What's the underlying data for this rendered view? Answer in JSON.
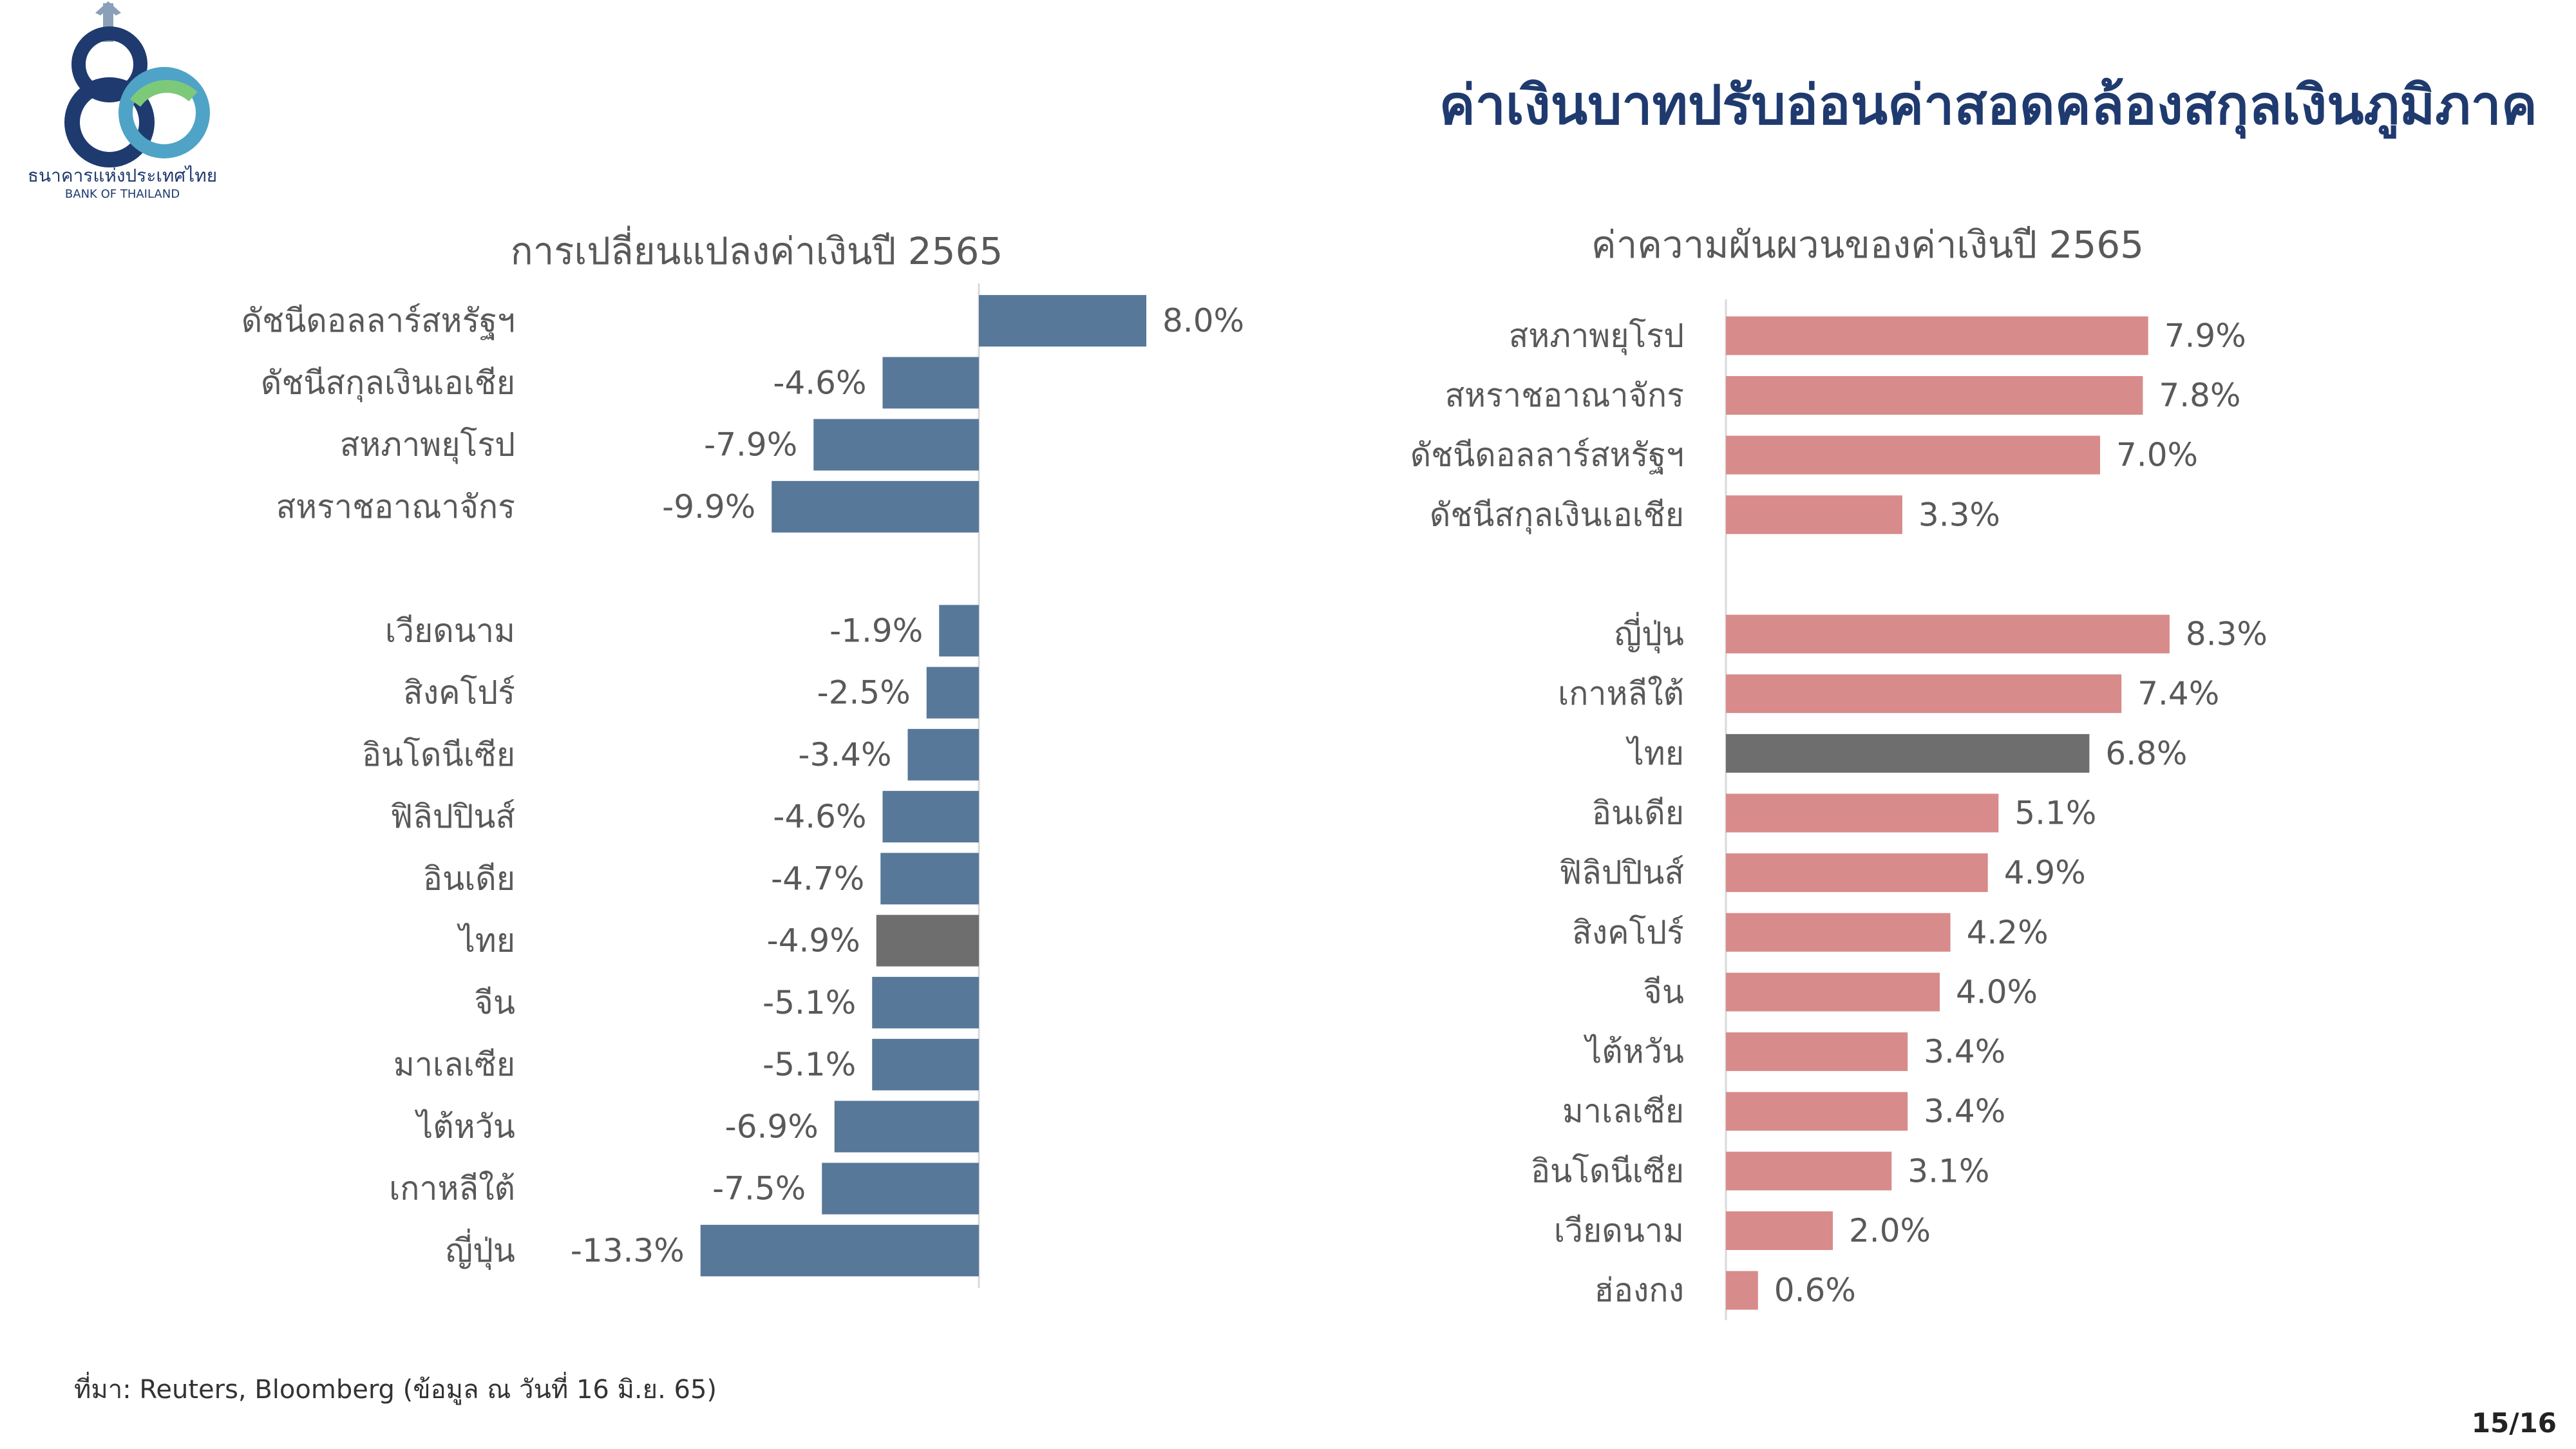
{
  "header": {
    "title": "ค่าเงินบาทปรับอ่อนค่าสอดคล้องสกุลเงินภูมิภาค",
    "logo": {
      "number": "80",
      "org_th": "ธนาคารแห่งประเทศไทย",
      "org_en": "BANK OF THAILAND"
    }
  },
  "colors": {
    "left_bar": "#587899",
    "right_bar": "#d88b8b",
    "highlight": "#6e6e6e",
    "title": "#1f3a6e"
  },
  "chart_data": [
    {
      "type": "bar",
      "orientation": "horizontal",
      "title": "การเปลี่ยนแปลงค่าเงินปี 2565",
      "categories": [
        "ดัชนีดอลลาร์สหรัฐฯ",
        "ดัชนีสกุลเงินเอเชีย",
        "สหภาพยุโรป",
        "สหราชอาณาจักร",
        "",
        "เวียดนาม",
        "สิงคโปร์",
        "อินโดนีเซีย",
        "ฟิลิปปินส์",
        "อินเดีย",
        "ไทย",
        "จีน",
        "มาเลเซีย",
        "ไต้หวัน",
        "เกาหลีใต้",
        "ญี่ปุ่น"
      ],
      "values": [
        8.0,
        -4.6,
        -7.9,
        -9.9,
        null,
        -1.9,
        -2.5,
        -3.4,
        -4.6,
        -4.7,
        -4.9,
        -5.1,
        -5.1,
        -6.9,
        -7.5,
        -13.3
      ],
      "value_labels": [
        "8.0%",
        "-4.6%",
        "-7.9%",
        "-9.9%",
        "",
        "-1.9%",
        "-2.5%",
        "-3.4%",
        "-4.6%",
        "-4.7%",
        "-4.9%",
        "-5.1%",
        "-5.1%",
        "-6.9%",
        "-7.5%",
        "-13.3%"
      ],
      "highlight": "ไทย",
      "unit": "%"
    },
    {
      "type": "bar",
      "orientation": "horizontal",
      "title": "ค่าความผันผวนของค่าเงินปี 2565",
      "categories": [
        "สหภาพยุโรป",
        "สหราชอาณาจักร",
        "ดัชนีดอลลาร์สหรัฐฯ",
        "ดัชนีสกุลเงินเอเชีย",
        "",
        "ญี่ปุ่น",
        "เกาหลีใต้",
        "ไทย",
        "อินเดีย",
        "ฟิลิปปินส์",
        "สิงคโปร์",
        "จีน",
        "ไต้หวัน",
        "มาเลเซีย",
        "อินโดนีเซีย",
        "เวียดนาม",
        "ฮ่องกง"
      ],
      "values": [
        7.9,
        7.8,
        7.0,
        3.3,
        null,
        8.3,
        7.4,
        6.8,
        5.1,
        4.9,
        4.2,
        4.0,
        3.4,
        3.4,
        3.1,
        2.0,
        0.6
      ],
      "value_labels": [
        "7.9%",
        "7.8%",
        "7.0%",
        "3.3%",
        "",
        "8.3%",
        "7.4%",
        "6.8%",
        "5.1%",
        "4.9%",
        "4.2%",
        "4.0%",
        "3.4%",
        "3.4%",
        "3.1%",
        "2.0%",
        "0.6%"
      ],
      "highlight": "ไทย",
      "unit": "%"
    }
  ],
  "footer": {
    "source": "ที่มา: Reuters, Bloomberg (ข้อมูล ณ วันที่ 16 มิ.ย. 65)",
    "page": "15/16"
  }
}
